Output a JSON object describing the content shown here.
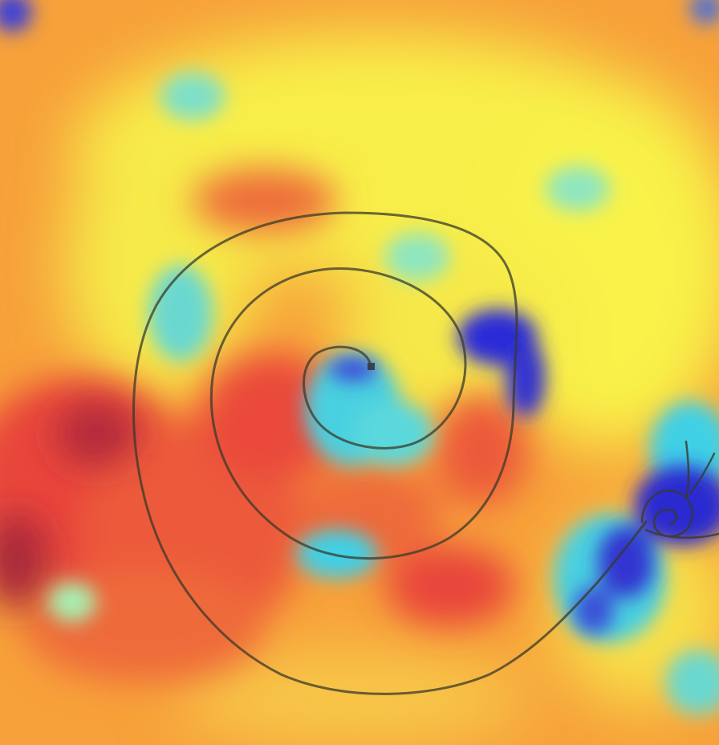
{
  "image": {
    "subject": "spiral-drawing-with-snail",
    "overlay": "saliency-heatmap",
    "colormap": "jet",
    "palette": {
      "low": "#2a2ad8",
      "low_mid": "#3fd0e6",
      "mid": "#f8f24a",
      "mid_high": "#f7a13a",
      "high": "#e8453a",
      "peak": "#b02a3a",
      "ink": "#3a3a2a"
    }
  }
}
